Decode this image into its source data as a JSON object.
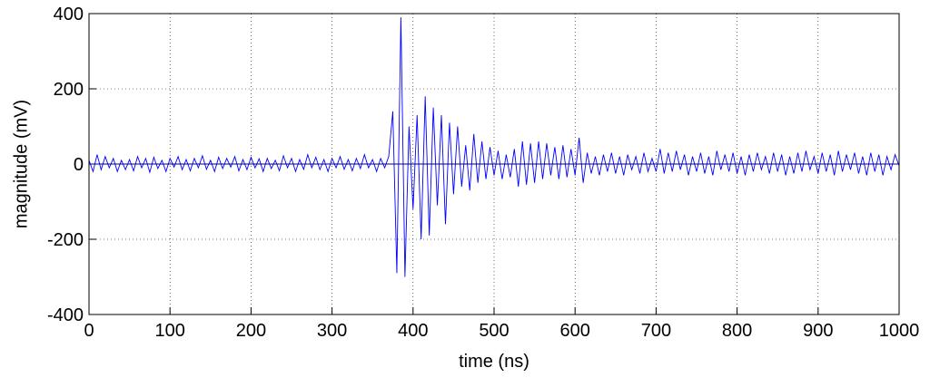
{
  "chart_data": {
    "type": "line",
    "xlabel": "time (ns)",
    "ylabel": "magnitude (mV)",
    "xlim": [
      0,
      1000
    ],
    "ylim": [
      -400,
      400
    ],
    "xticks": [
      0,
      100,
      200,
      300,
      400,
      500,
      600,
      700,
      800,
      900,
      1000
    ],
    "yticks": [
      -400,
      -200,
      0,
      200,
      400
    ],
    "grid": true,
    "series": [
      {
        "color": "#0000ff",
        "x": [
          0,
          5,
          10,
          15,
          20,
          25,
          30,
          35,
          40,
          45,
          50,
          55,
          60,
          65,
          70,
          75,
          80,
          85,
          90,
          95,
          100,
          105,
          110,
          115,
          120,
          125,
          130,
          135,
          140,
          145,
          150,
          155,
          160,
          165,
          170,
          175,
          180,
          185,
          190,
          195,
          200,
          205,
          210,
          215,
          220,
          225,
          230,
          235,
          240,
          245,
          250,
          255,
          260,
          265,
          270,
          275,
          280,
          285,
          290,
          295,
          300,
          305,
          310,
          315,
          320,
          325,
          330,
          335,
          340,
          345,
          350,
          355,
          360,
          365,
          370,
          375,
          380,
          385,
          390,
          395,
          400,
          405,
          410,
          415,
          420,
          425,
          430,
          435,
          440,
          445,
          450,
          455,
          460,
          465,
          470,
          475,
          480,
          485,
          490,
          495,
          500,
          505,
          510,
          515,
          520,
          525,
          530,
          535,
          540,
          545,
          550,
          555,
          560,
          565,
          570,
          575,
          580,
          585,
          590,
          595,
          600,
          605,
          610,
          615,
          620,
          625,
          630,
          635,
          640,
          645,
          650,
          655,
          660,
          665,
          670,
          675,
          680,
          685,
          690,
          695,
          700,
          705,
          710,
          715,
          720,
          725,
          730,
          735,
          740,
          745,
          750,
          755,
          760,
          765,
          770,
          775,
          780,
          785,
          790,
          795,
          800,
          805,
          810,
          815,
          820,
          825,
          830,
          835,
          840,
          845,
          850,
          855,
          860,
          865,
          870,
          875,
          880,
          885,
          890,
          895,
          900,
          905,
          910,
          915,
          920,
          925,
          930,
          935,
          940,
          945,
          950,
          955,
          960,
          965,
          970,
          975,
          980,
          985,
          990,
          995,
          1000
        ],
        "values": [
          10,
          -20,
          25,
          -15,
          20,
          -10,
          15,
          -20,
          10,
          -15,
          12,
          -18,
          20,
          -10,
          15,
          -22,
          18,
          -12,
          10,
          -20,
          15,
          -8,
          20,
          -15,
          12,
          -18,
          15,
          -10,
          22,
          -14,
          10,
          -20,
          18,
          -12,
          15,
          -8,
          20,
          -18,
          12,
          -15,
          18,
          -10,
          14,
          -20,
          15,
          -12,
          10,
          -18,
          22,
          -10,
          15,
          -20,
          12,
          -14,
          25,
          -10,
          18,
          -15,
          12,
          -20,
          15,
          -10,
          20,
          -14,
          12,
          -18,
          15,
          -12,
          25,
          -10,
          12,
          -20,
          15,
          -10,
          20,
          140,
          -290,
          390,
          -300,
          100,
          -120,
          130,
          -200,
          180,
          -190,
          150,
          -110,
          130,
          -160,
          110,
          -80,
          100,
          -60,
          50,
          -70,
          80,
          -50,
          60,
          -40,
          45,
          -30,
          35,
          -40,
          25,
          -35,
          40,
          -60,
          60,
          -55,
          55,
          -50,
          60,
          -40,
          55,
          -30,
          45,
          -40,
          50,
          -35,
          40,
          -30,
          70,
          -50,
          30,
          -25,
          20,
          -30,
          25,
          -20,
          30,
          -25,
          20,
          -30,
          25,
          -15,
          20,
          -25,
          30,
          -20,
          15,
          -20,
          40,
          -25,
          30,
          -20,
          35,
          -15,
          25,
          -30,
          20,
          -20,
          30,
          -25,
          20,
          -30,
          35,
          -15,
          25,
          -20,
          30,
          -25,
          20,
          -30,
          25,
          -20,
          30,
          -15,
          20,
          -25,
          30,
          -20,
          25,
          -30,
          20,
          -25,
          30,
          -20,
          35,
          -15,
          20,
          -25,
          30,
          -20,
          25,
          -30,
          35,
          -20,
          25,
          -15,
          30,
          -25,
          20,
          -30,
          30,
          -20,
          25,
          -30,
          20,
          -15,
          25,
          -5
        ]
      },
      {
        "color": "#000080",
        "x": [
          0,
          1000
        ],
        "values": [
          0,
          0
        ]
      }
    ]
  }
}
